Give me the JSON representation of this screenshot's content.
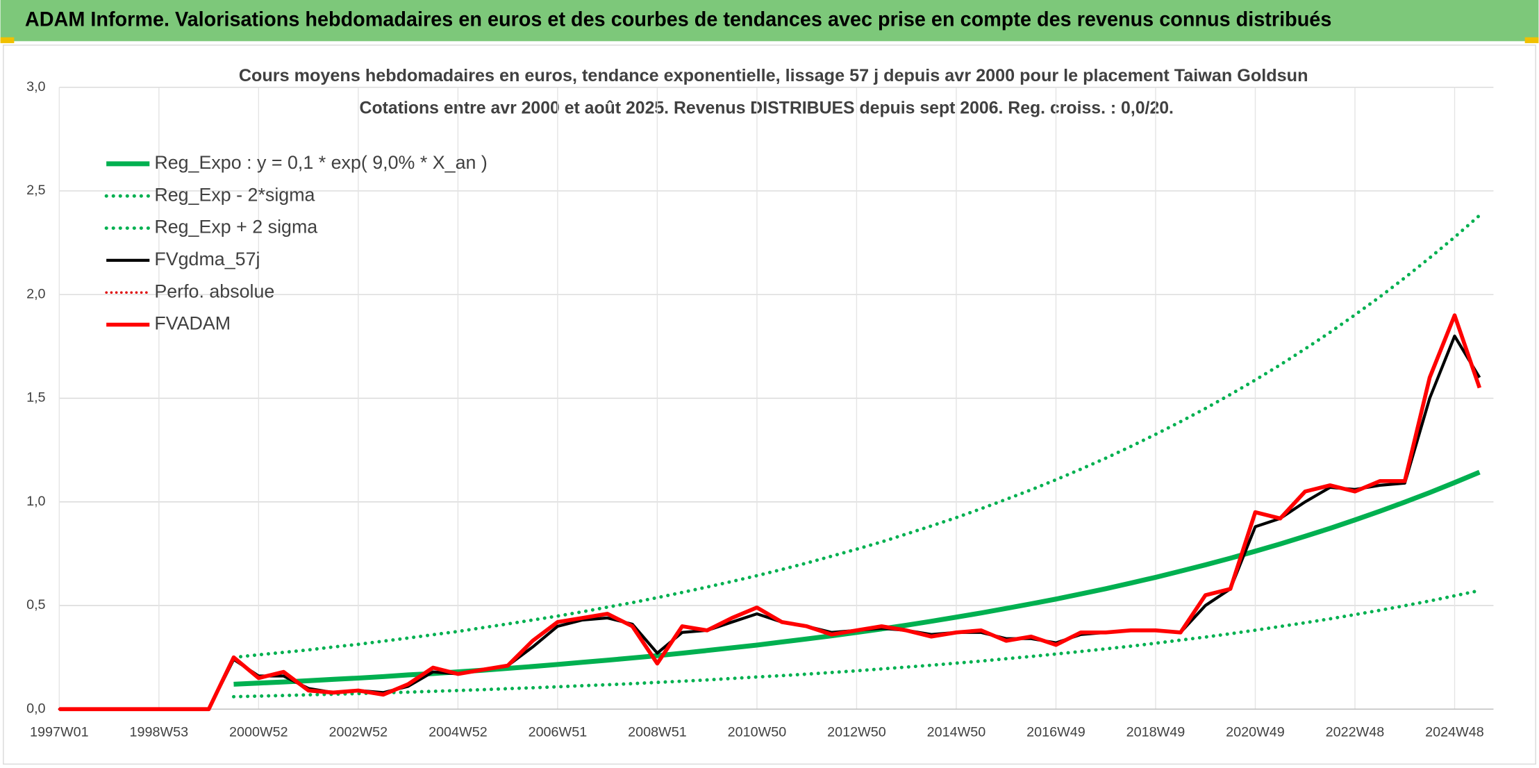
{
  "header": {
    "title": "ADAM Informe. Valorisations hebdomadaires en euros et des courbes de tendances avec prise en compte des revenus connus distribués"
  },
  "chart_data": {
    "type": "line",
    "title": "Cours moyens hebdomadaires en euros, tendance exponentielle, lissage 57 j depuis avr 2000 pour le placement Taiwan Goldsun",
    "subtitle": "Cotations entre avr 2000 et août 2025. Revenus DISTRIBUES depuis sept 2006. Reg. croiss. : 0,0/20.",
    "categories": [
      "1997W01",
      null,
      null,
      null,
      "1998W53",
      null,
      null,
      null,
      "2000W52",
      null,
      null,
      null,
      "2002W52",
      null,
      null,
      null,
      "2004W52",
      null,
      null,
      null,
      "2006W51",
      null,
      null,
      null,
      "2008W51",
      null,
      null,
      null,
      "2010W50",
      null,
      null,
      null,
      "2012W50",
      null,
      null,
      null,
      "2014W50",
      null,
      null,
      null,
      "2016W49",
      null,
      null,
      null,
      "2018W49",
      null,
      null,
      null,
      "2020W49",
      null,
      null,
      null,
      "2022W48",
      null,
      null,
      null,
      "2024W48",
      null
    ],
    "ylim": [
      0,
      3
    ],
    "yticks": [
      {
        "value": 0,
        "label": "0,0"
      },
      {
        "value": 0.5,
        "label": "0,5"
      },
      {
        "value": 1,
        "label": "1,0"
      },
      {
        "value": 1.5,
        "label": "1,5"
      },
      {
        "value": 2,
        "label": "2,0"
      },
      {
        "value": 2.5,
        "label": "2,5"
      },
      {
        "value": 3,
        "label": "3,0"
      }
    ],
    "grid": true,
    "legend": "upper left",
    "series": [
      {
        "name": "Reg_Expo : y = 0,1 * exp( 9,0% *  X_an )",
        "color": "#00b050",
        "style": "solid",
        "line_width": 5,
        "values": [
          null,
          null,
          null,
          null,
          null,
          null,
          null,
          0.12,
          0.126,
          0.131,
          0.137,
          0.144,
          0.15,
          0.157,
          0.165,
          0.172,
          0.18,
          0.188,
          0.197,
          0.206,
          0.216,
          0.226,
          0.236,
          0.247,
          0.258,
          0.27,
          0.283,
          0.296,
          0.309,
          0.324,
          0.339,
          0.354,
          0.37,
          0.387,
          0.405,
          0.424,
          0.444,
          0.464,
          0.486,
          0.508,
          0.531,
          0.556,
          0.581,
          0.608,
          0.636,
          0.666,
          0.696,
          0.728,
          0.762,
          0.797,
          0.834,
          0.872,
          0.913,
          0.955,
          0.999,
          1.045,
          1.093,
          1.143
        ]
      },
      {
        "name": "Reg_Exp - 2*sigma",
        "color": "#00b050",
        "style": "dotted",
        "line_width": 3.5,
        "values": [
          null,
          null,
          null,
          null,
          null,
          null,
          null,
          0.06,
          0.063,
          0.066,
          0.069,
          0.072,
          0.075,
          0.079,
          0.082,
          0.086,
          0.09,
          0.094,
          0.099,
          0.103,
          0.108,
          0.113,
          0.118,
          0.123,
          0.129,
          0.135,
          0.141,
          0.148,
          0.155,
          0.162,
          0.169,
          0.177,
          0.185,
          0.194,
          0.203,
          0.212,
          0.222,
          0.232,
          0.243,
          0.254,
          0.266,
          0.278,
          0.291,
          0.304,
          0.318,
          0.333,
          0.348,
          0.364,
          0.381,
          0.399,
          0.417,
          0.436,
          0.456,
          0.477,
          0.499,
          0.522,
          0.547,
          0.572
        ]
      },
      {
        "name": "Reg_Exp + 2 sigma",
        "color": "#00b050",
        "style": "dotted",
        "line_width": 3.5,
        "values": [
          null,
          null,
          null,
          null,
          null,
          null,
          null,
          0.25,
          0.262,
          0.274,
          0.286,
          0.3,
          0.313,
          0.328,
          0.343,
          0.359,
          0.375,
          0.393,
          0.411,
          0.43,
          0.449,
          0.47,
          0.492,
          0.514,
          0.538,
          0.563,
          0.589,
          0.616,
          0.644,
          0.674,
          0.705,
          0.738,
          0.772,
          0.807,
          0.845,
          0.884,
          0.924,
          0.967,
          1.012,
          1.058,
          1.107,
          1.158,
          1.211,
          1.267,
          1.326,
          1.387,
          1.451,
          1.518,
          1.588,
          1.661,
          1.738,
          1.818,
          1.902,
          1.989,
          2.081,
          2.177,
          2.277,
          2.382
        ]
      },
      {
        "name": "FVgdma_57j",
        "color": "#000000",
        "style": "solid",
        "line_width": 3,
        "values": [
          0,
          0,
          0,
          0,
          0,
          0,
          0,
          0.24,
          0.16,
          0.16,
          0.1,
          0.08,
          0.09,
          0.08,
          0.11,
          0.18,
          0.17,
          0.19,
          0.21,
          0.3,
          0.4,
          0.43,
          0.44,
          0.41,
          0.27,
          0.37,
          0.38,
          0.42,
          0.46,
          0.42,
          0.4,
          0.37,
          0.38,
          0.39,
          0.38,
          0.36,
          0.37,
          0.37,
          0.34,
          0.34,
          0.32,
          0.36,
          0.37,
          0.38,
          0.38,
          0.37,
          0.5,
          0.58,
          0.88,
          0.92,
          1.0,
          1.07,
          1.06,
          1.08,
          1.09,
          1.5,
          1.8,
          1.6
        ]
      },
      {
        "name": "Perfo. absolue",
        "color": "#e00000",
        "style": "dotted",
        "line_width": 2.5,
        "values": [
          0,
          0,
          0,
          0,
          0,
          0,
          0,
          0.25,
          0.15,
          0.18,
          0.09,
          0.08,
          0.09,
          0.07,
          0.12,
          0.2,
          0.17,
          0.19,
          0.21,
          0.33,
          0.42,
          0.44,
          0.46,
          0.4,
          0.22,
          0.4,
          0.38,
          0.44,
          0.49,
          0.42,
          0.4,
          0.36,
          0.38,
          0.4,
          0.38,
          0.35,
          0.37,
          0.38,
          0.33,
          0.35,
          0.31,
          0.37,
          0.37,
          0.38,
          0.38,
          0.37,
          0.55,
          0.58,
          0.95,
          0.92,
          1.05,
          1.08,
          1.05,
          1.1,
          1.1,
          1.6,
          1.9,
          1.55
        ]
      },
      {
        "name": "FVADAM",
        "color": "#ff0000",
        "style": "solid",
        "line_width": 4,
        "values": [
          0,
          0,
          0,
          0,
          0,
          0,
          0,
          0.25,
          0.15,
          0.18,
          0.09,
          0.08,
          0.09,
          0.07,
          0.12,
          0.2,
          0.17,
          0.19,
          0.21,
          0.33,
          0.42,
          0.44,
          0.46,
          0.4,
          0.22,
          0.4,
          0.38,
          0.44,
          0.49,
          0.42,
          0.4,
          0.36,
          0.38,
          0.4,
          0.38,
          0.35,
          0.37,
          0.38,
          0.33,
          0.35,
          0.31,
          0.37,
          0.37,
          0.38,
          0.38,
          0.37,
          0.55,
          0.58,
          0.95,
          0.92,
          1.05,
          1.08,
          1.05,
          1.1,
          1.1,
          1.6,
          1.9,
          1.55
        ]
      }
    ]
  }
}
